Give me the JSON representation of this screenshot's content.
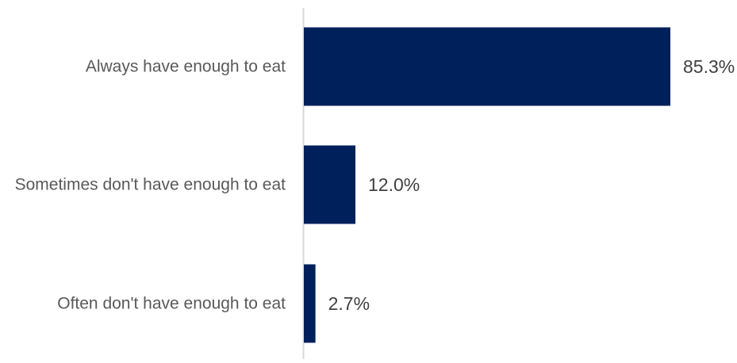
{
  "chart_data": {
    "type": "bar",
    "orientation": "horizontal",
    "categories": [
      "Always have enough to eat",
      "Sometimes don't have enough to eat",
      "Often don't have enough to eat"
    ],
    "values": [
      85.3,
      12.0,
      2.7
    ],
    "value_labels": [
      "85.3%",
      "12.0%",
      "2.7%"
    ],
    "unit": "%",
    "xlim": [
      0,
      100
    ],
    "grid": false,
    "legend": "none",
    "bar_color": "#00205B",
    "axis_color": "#D9D9D9"
  }
}
